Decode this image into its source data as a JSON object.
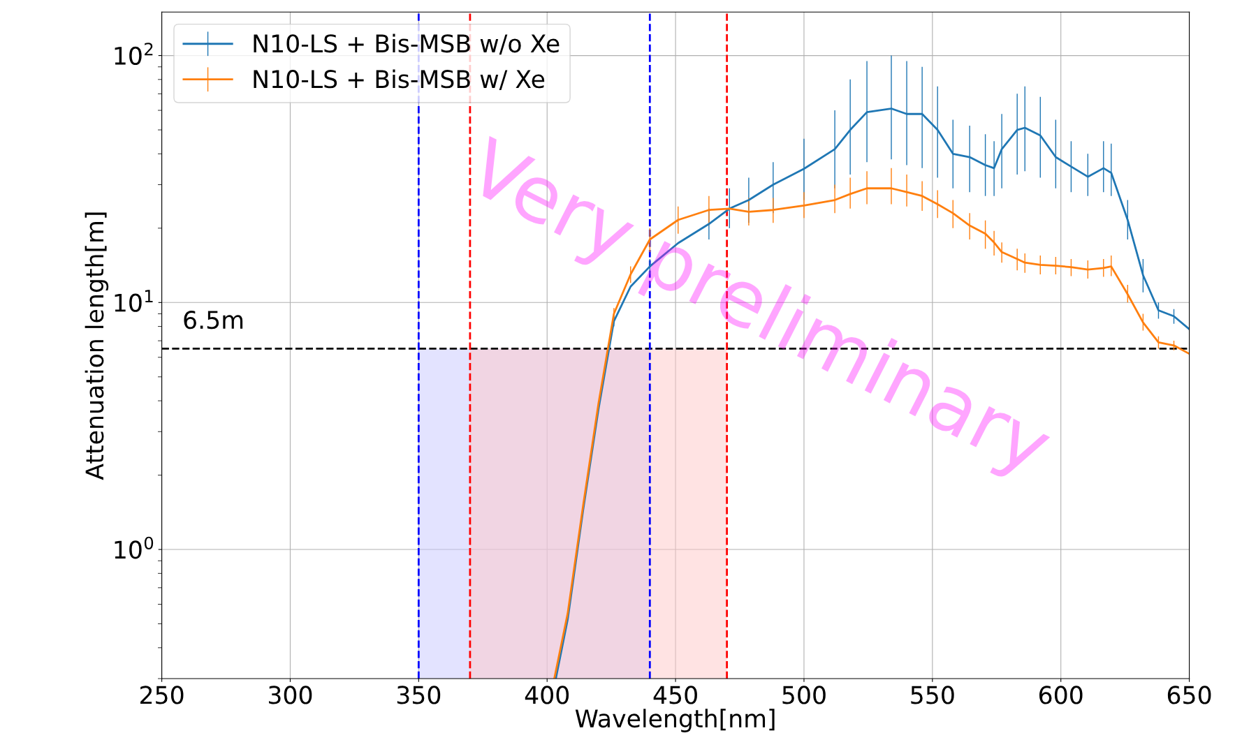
{
  "chart_data": {
    "type": "line",
    "xlabel": "Wavelength[nm]",
    "ylabel": "Attenuation length[m]",
    "log": "y",
    "xlim": [
      250,
      650
    ],
    "xticks": [
      250,
      300,
      350,
      400,
      450,
      500,
      550,
      600,
      650
    ],
    "ylim": [
      0.3,
      150
    ],
    "yticks": [
      {
        "value": 1,
        "label": "10$^{0}$"
      },
      {
        "value": 10,
        "label": "10$^{1}$"
      },
      {
        "value": 100,
        "label": "10$^{2}$"
      }
    ],
    "grid": true,
    "legend": "top left",
    "series": [
      {
        "name": "N10-LS + Bis-MSB w/o Xe",
        "color": "#1f77b4",
        "x": [
          403.4,
          408,
          414,
          420,
          426,
          432.5,
          440,
          451,
          463,
          471,
          478.5,
          488,
          500,
          512,
          518,
          524.5,
          534,
          540,
          546,
          552,
          558,
          564.5,
          570.6,
          574,
          577,
          583,
          586,
          592,
          598,
          604,
          610.5,
          616.6,
          619.6,
          626,
          632,
          638,
          644,
          650
        ],
        "values": [
          0.3,
          0.52,
          1.44,
          3.7,
          8.4,
          11.6,
          14,
          17.4,
          20.8,
          24,
          26,
          30,
          34.8,
          41.8,
          50,
          59,
          61,
          58,
          58,
          50,
          40,
          38.8,
          36,
          35,
          41.8,
          50,
          51,
          47.5,
          38.8,
          35.5,
          32.3,
          35,
          33.5,
          21.6,
          12.9,
          9.3,
          8.8,
          7.8
        ],
        "errors": [
          null,
          null,
          null,
          null,
          [
            8,
            8.8
          ],
          null,
          [
            13,
            15
          ],
          null,
          [
            18,
            24
          ],
          [
            20,
            29
          ],
          [
            21,
            32
          ],
          [
            23,
            37
          ],
          [
            26,
            46
          ],
          [
            29,
            60
          ],
          [
            33,
            80
          ],
          [
            37,
            95
          ],
          [
            38,
            100
          ],
          [
            36,
            95
          ],
          [
            35,
            90
          ],
          [
            32,
            75
          ],
          [
            29,
            55
          ],
          [
            28,
            52
          ],
          [
            27,
            48
          ],
          [
            27,
            45
          ],
          [
            29,
            58
          ],
          [
            33,
            70
          ],
          [
            34,
            75
          ],
          [
            32,
            68
          ],
          [
            29,
            55
          ],
          [
            28,
            45
          ],
          [
            27,
            40
          ],
          [
            28,
            45
          ],
          [
            27,
            44
          ],
          [
            18,
            26
          ],
          [
            11,
            15
          ],
          [
            8.6,
            10
          ],
          [
            8.2,
            9.4
          ],
          null
        ]
      },
      {
        "name": "N10-LS + Bis-MSB w/ Xe",
        "color": "#ff7f0e",
        "x": [
          402.8,
          408,
          414,
          420,
          426,
          432.5,
          440,
          451,
          463,
          471,
          478.5,
          488,
          500,
          512,
          518,
          524.5,
          534,
          540,
          546,
          552,
          558,
          564.5,
          570.6,
          574,
          577,
          583,
          586,
          592,
          598,
          604,
          610.5,
          616.6,
          619.6,
          626,
          632,
          638,
          644,
          650
        ],
        "values": [
          0.3,
          0.55,
          1.5,
          3.9,
          9,
          13,
          18,
          21.6,
          23.7,
          24,
          23.3,
          23.7,
          24.7,
          26,
          27.5,
          29,
          29,
          28,
          27,
          25,
          23,
          20.5,
          19,
          17.5,
          16,
          15,
          14.5,
          14.2,
          14.1,
          13.9,
          13.6,
          13.8,
          14,
          10.8,
          8.3,
          6.9,
          6.7,
          6.2
        ],
        "errors": [
          null,
          null,
          null,
          null,
          [
            8.5,
            9.5
          ],
          [
            12,
            14
          ],
          [
            16,
            20
          ],
          [
            19,
            24.5
          ],
          [
            20.5,
            27
          ],
          null,
          [
            20.5,
            26.5
          ],
          [
            21,
            26.5
          ],
          [
            22,
            28
          ],
          [
            23,
            30
          ],
          [
            24,
            32
          ],
          [
            25,
            34
          ],
          [
            25,
            35
          ],
          [
            24.5,
            33
          ],
          [
            23.5,
            31
          ],
          [
            22,
            28.5
          ],
          [
            20,
            26
          ],
          [
            18,
            23
          ],
          [
            16.5,
            21.5
          ],
          [
            15.5,
            19.5
          ],
          [
            14.5,
            17.5
          ],
          [
            13.5,
            16.5
          ],
          [
            13.2,
            15.8
          ],
          [
            13,
            15.5
          ],
          [
            13,
            15.3
          ],
          [
            12.8,
            15
          ],
          [
            12.5,
            14.8
          ],
          [
            12.7,
            15
          ],
          [
            12.8,
            15.5
          ],
          [
            10,
            11.8
          ],
          [
            7.7,
            9
          ],
          [
            6.5,
            7.3
          ],
          [
            6.4,
            7
          ],
          null
        ]
      }
    ],
    "ref_lines": [
      {
        "axis": "y",
        "value": 6.5,
        "label": "6.5m",
        "color": "#000000",
        "line_style": "dashed"
      },
      {
        "axis": "x",
        "value": 350,
        "color": "#0000ff",
        "line_style": "dashed"
      },
      {
        "axis": "x",
        "value": 440,
        "color": "#0000ff",
        "line_style": "dashed"
      },
      {
        "axis": "x",
        "value": 370,
        "color": "#ff0000",
        "line_style": "dashed"
      },
      {
        "axis": "x",
        "value": 470,
        "color": "#ff0000",
        "line_style": "dashed"
      }
    ],
    "bands": [
      {
        "axis": "x",
        "from": 350,
        "to": 440,
        "color": "#c8c8ff"
      },
      {
        "axis": "x",
        "from": 370,
        "to": 470,
        "color": "#ffc8c8"
      }
    ],
    "annotations": [
      "Very preliminary"
    ]
  }
}
